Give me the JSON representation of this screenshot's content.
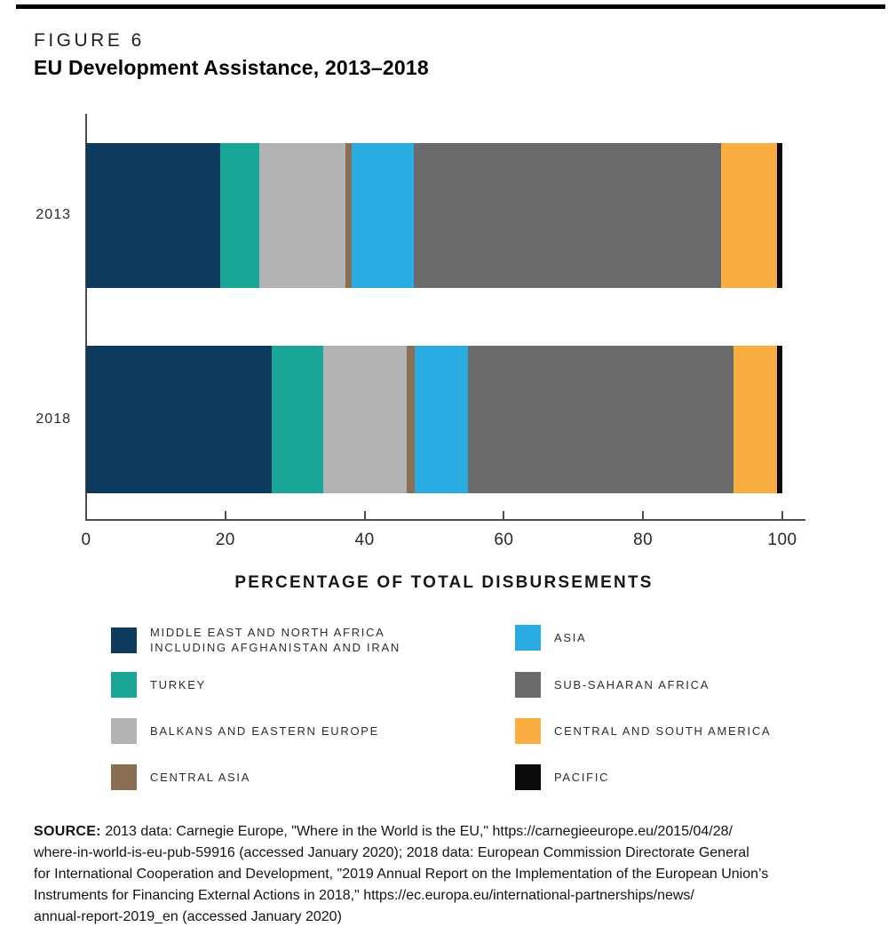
{
  "figure": {
    "label": "FIGURE 6",
    "title": "EU Development Assistance, 2013–2018"
  },
  "chart_data": {
    "type": "bar",
    "orientation": "horizontal",
    "stacked": true,
    "title": "EU Development Assistance, 2013–2018",
    "categories": [
      "2013",
      "2018"
    ],
    "xlabel": "PERCENTAGE OF TOTAL DISBURSEMENTS",
    "ylabel": "",
    "xlim": [
      0,
      100
    ],
    "xticks": [
      0,
      20,
      40,
      60,
      80,
      100
    ],
    "grid": false,
    "legend_position": "bottom",
    "series": [
      {
        "key": "mena",
        "name": "MIDDLE EAST AND NORTH AFRICA INCLUDING AFGHANISTAN AND IRAN",
        "color": "#0e3a5e",
        "values": [
          19.2,
          26.7
        ]
      },
      {
        "key": "turkey",
        "name": "TURKEY",
        "color": "#1aa696",
        "values": [
          5.7,
          7.3
        ]
      },
      {
        "key": "balkans",
        "name": "BALKANS AND EASTERN EUROPE",
        "color": "#b1b3b5",
        "values": [
          12.3,
          12.1
        ]
      },
      {
        "key": "central-asia",
        "name": "CENTRAL ASIA",
        "color": "#8b6f52",
        "values": [
          1.0,
          1.1
        ]
      },
      {
        "key": "asia",
        "name": "ASIA",
        "color": "#2aabe2",
        "values": [
          8.9,
          7.6
        ]
      },
      {
        "key": "ssa",
        "name": "SUB-SAHARAN AFRICA",
        "color": "#696a6c",
        "values": [
          44.1,
          38.2
        ]
      },
      {
        "key": "csa",
        "name": "CENTRAL AND SOUTH AMERICA",
        "color": "#faae42",
        "values": [
          8.0,
          6.3
        ]
      },
      {
        "key": "pacific",
        "name": "PACIFIC",
        "color": "#0b0b0b",
        "values": [
          0.8,
          0.7
        ]
      }
    ]
  },
  "legend": {
    "columns": [
      [
        {
          "key": "mena",
          "lines": [
            "MIDDLE EAST AND NORTH AFRICA",
            "INCLUDING AFGHANISTAN AND IRAN"
          ]
        },
        {
          "key": "turkey",
          "lines": [
            "TURKEY"
          ]
        },
        {
          "key": "balkans",
          "lines": [
            "BALKANS AND EASTERN EUROPE"
          ]
        },
        {
          "key": "central-asia",
          "lines": [
            "CENTRAL ASIA"
          ]
        }
      ],
      [
        {
          "key": "asia",
          "lines": [
            "ASIA"
          ]
        },
        {
          "key": "ssa",
          "lines": [
            "SUB-SAHARAN AFRICA"
          ]
        },
        {
          "key": "csa",
          "lines": [
            "CENTRAL AND SOUTH AMERICA"
          ]
        },
        {
          "key": "pacific",
          "lines": [
            "PACIFIC"
          ]
        }
      ]
    ]
  },
  "source": {
    "prefix": "SOURCE:",
    "lines": [
      " 2013 data: Carnegie Europe, \"Where in the World is the EU,\" https://carnegieeurope.eu/2015/04/28/",
      "where-in-world-is-eu-pub-59916 (accessed January 2020); 2018 data: European Commission Directorate General",
      "for International Cooperation and Development, \"2019 Annual Report on the Implementation of the European Union’s",
      "Instruments for Financing External Actions in 2018,\" https://ec.europa.eu/international-partnerships/news/",
      "annual-report-2019_en (accessed January 2020)"
    ]
  }
}
